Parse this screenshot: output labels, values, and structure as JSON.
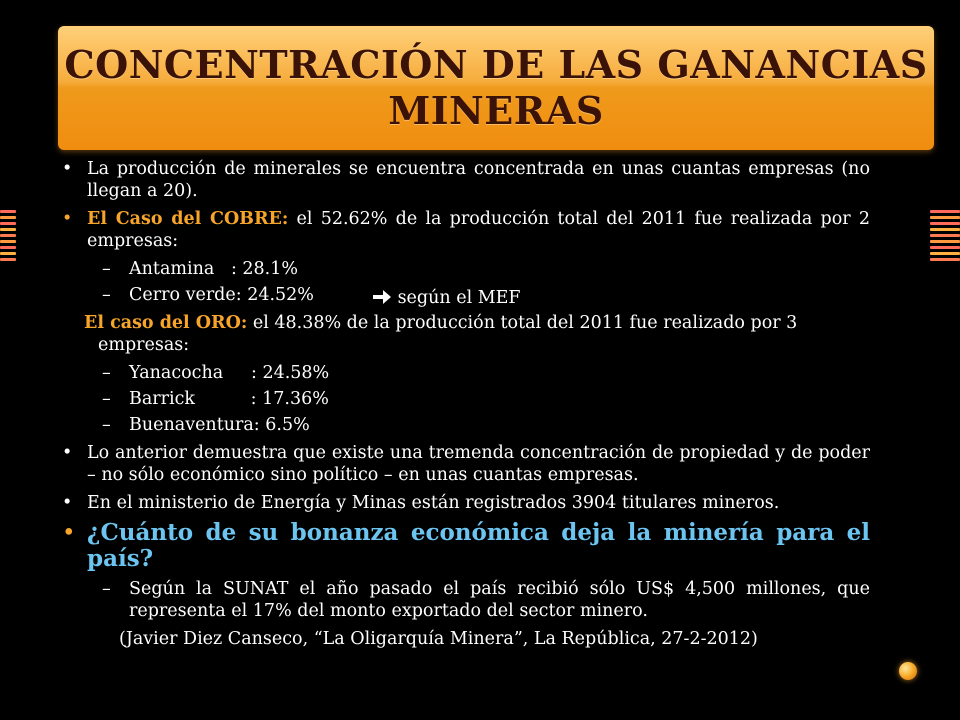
{
  "title": {
    "line1": "CONCENTRACIÓN DE LAS GANANCIAS",
    "line2": "MINERAS"
  },
  "bullets": {
    "intro": "La producción de minerales se encuentra concentrada en unas cuantas empresas (no llegan a 20).",
    "cobre_label": "El Caso del COBRE:",
    "cobre_text": " el 52.62% de la producción total del 2011 fue realizada por 2 empresas:",
    "cobre_items": [
      "Antamina   : 28.1%",
      "Cerro verde: 24.52%"
    ],
    "mef_note": "según el MEF",
    "oro_label": "El caso del ORO:",
    "oro_text": " el 48.38% de la producción total del 2011 fue realizado por 3 empresas:",
    "oro_items": [
      "Yanacocha     : 24.58%",
      "Barrick          : 17.36%",
      "Buenaventura: 6.5%"
    ],
    "conclusion": "Lo anterior demuestra que existe una tremenda concentración de propiedad y de poder – no sólo económico sino político – en unas cuantas empresas.",
    "ministerio": "En el ministerio de Energía y Minas están registrados 3904 titulares mineros.",
    "question": "¿Cuánto de su bonanza económica deja la minería para el país?",
    "sunat": "Según la SUNAT el año pasado el país recibió sólo US$ 4,500 millones, que representa el 17% del monto exportado del sector minero.",
    "citation": "(Javier Diez Canseco, “La Oligarquía Minera”, La República, 27-2-2012)"
  },
  "colors": {
    "accent_orange": "#f7a52a",
    "question_blue": "#6cc4f0",
    "title_text": "#3a1208"
  },
  "icons": {
    "arrow": "right-arrow-icon"
  }
}
